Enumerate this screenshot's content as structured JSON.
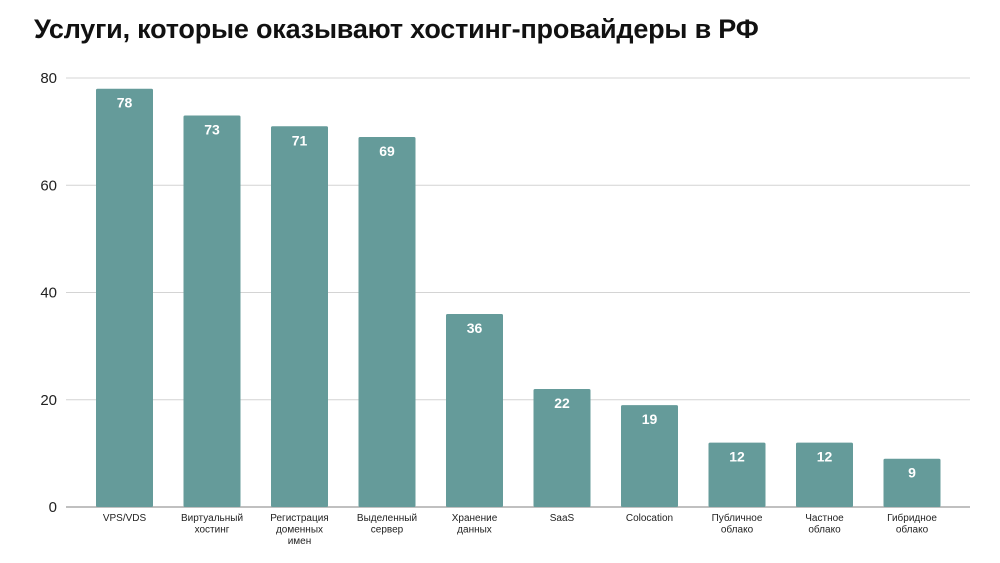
{
  "chart_data": {
    "type": "bar",
    "title": "Услуги, которые оказывают хостинг-провайдеры в РФ",
    "xlabel": "",
    "ylabel": "",
    "ylim": [
      0,
      80
    ],
    "yticks": [
      0,
      20,
      40,
      60,
      80
    ],
    "grid": true,
    "legend": "none",
    "bar_color": "#659b9a",
    "categories": [
      [
        "VPS/VDS"
      ],
      [
        "Виртуальный",
        "хостинг"
      ],
      [
        "Регистрация",
        "доменных",
        "имен"
      ],
      [
        "Выделенный",
        "сервер"
      ],
      [
        "Хранение",
        "данных"
      ],
      [
        "SaaS"
      ],
      [
        "Colocation"
      ],
      [
        "Публичное",
        "облако"
      ],
      [
        "Частное",
        "облако"
      ],
      [
        "Гибридное",
        "облако"
      ]
    ],
    "values": [
      78,
      73,
      71,
      69,
      36,
      22,
      19,
      12,
      12,
      9
    ]
  }
}
